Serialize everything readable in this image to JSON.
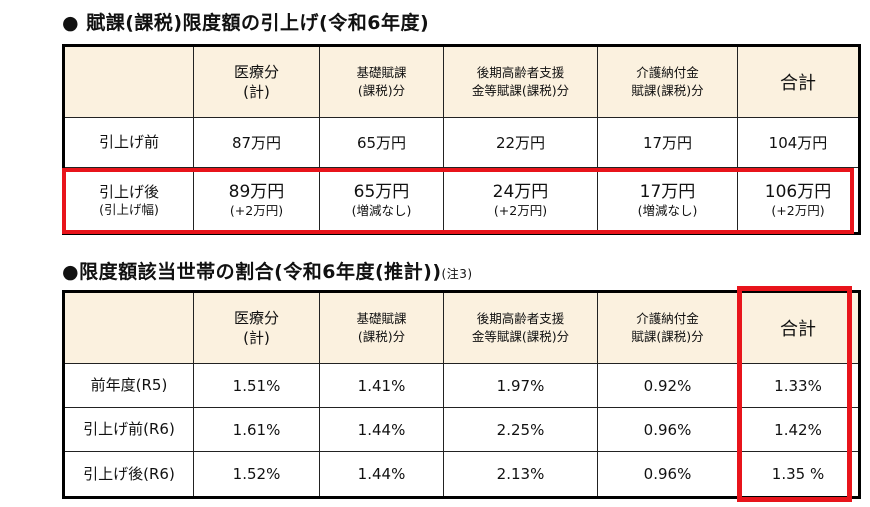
{
  "heading1": "● 賦課(課税)限度額の引上げ(令和6年度)",
  "heading2": "●限度額該当世帯の割合(令和6年度(推計))",
  "heading2_note": "(注3)",
  "table1": {
    "headers": [
      {
        "line1": "医療分",
        "line2": "(計)"
      },
      {
        "line1": "基礎賦課",
        "line2": "(課税)分"
      },
      {
        "line1": "後期高齢者支援",
        "line2": "金等賦課(課税)分"
      },
      {
        "line1": "介護納付金",
        "line2": "賦課(課税)分"
      },
      {
        "line1": "合計",
        "line2": ""
      }
    ],
    "rows": [
      {
        "label1": "引上げ前",
        "label2": "",
        "cells": [
          {
            "main": "87万円",
            "sub": ""
          },
          {
            "main": "65万円",
            "sub": ""
          },
          {
            "main": "22万円",
            "sub": ""
          },
          {
            "main": "17万円",
            "sub": ""
          },
          {
            "main": "104万円",
            "sub": ""
          }
        ]
      },
      {
        "label1": "引上げ後",
        "label2": "(引上げ幅)",
        "cells": [
          {
            "main": "89万円",
            "sub": "(+2万円)"
          },
          {
            "main": "65万円",
            "sub": "(増減なし)"
          },
          {
            "main": "24万円",
            "sub": "(+2万円)"
          },
          {
            "main": "17万円",
            "sub": "(増減なし)"
          },
          {
            "main": "106万円",
            "sub": "(+2万円)"
          }
        ]
      }
    ]
  },
  "table2": {
    "headers": [
      {
        "line1": "医療分",
        "line2": "(計)"
      },
      {
        "line1": "基礎賦課",
        "line2": "(課税)分"
      },
      {
        "line1": "後期高齢者支援",
        "line2": "金等賦課(課税)分"
      },
      {
        "line1": "介護納付金",
        "line2": "賦課(課税)分"
      },
      {
        "line1": "合計",
        "line2": ""
      }
    ],
    "rows": [
      {
        "label": "前年度(R5)",
        "cells": [
          "1.51%",
          "1.41%",
          "1.97%",
          "0.92%",
          "1.33%"
        ]
      },
      {
        "label": "引上げ前(R6)",
        "cells": [
          "1.61%",
          "1.44%",
          "2.25%",
          "0.96%",
          "1.42%"
        ]
      },
      {
        "label": "引上げ後(R6)",
        "cells": [
          "1.52%",
          "1.44%",
          "2.13%",
          "0.96%",
          "1.35 %"
        ]
      }
    ]
  },
  "colors": {
    "header_bg": "#fbf1df",
    "highlight": "#e8141b"
  }
}
